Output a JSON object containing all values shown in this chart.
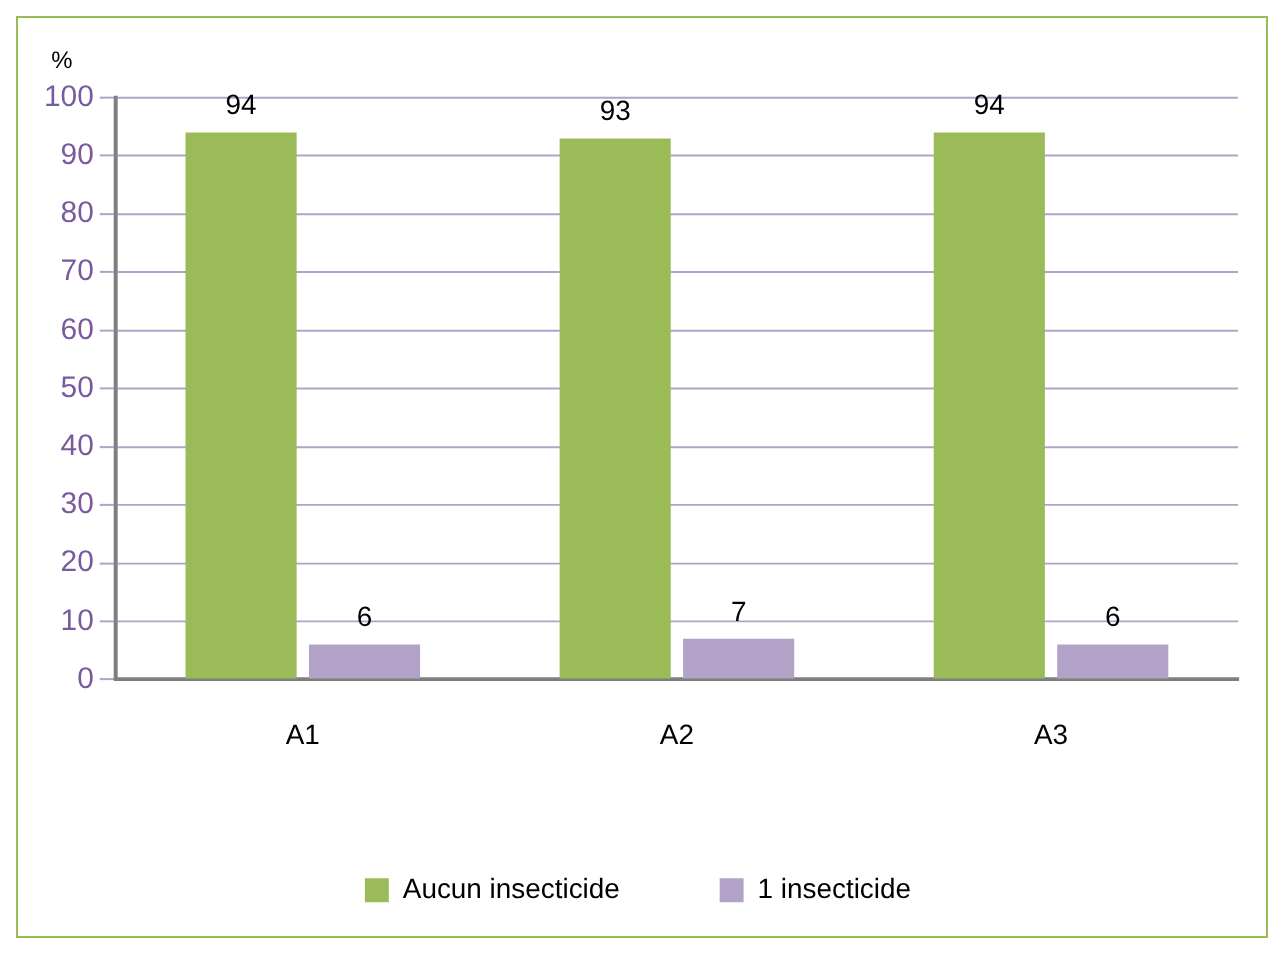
{
  "chart_data": {
    "type": "bar",
    "ylabel": "%",
    "categories": [
      "A1",
      "A2",
      "A3"
    ],
    "series": [
      {
        "name": "Aucun insecticide",
        "color": "#9bbb59",
        "values": [
          94,
          93,
          94
        ]
      },
      {
        "name": "1 insecticide",
        "color": "#b3a2c7",
        "values": [
          6,
          7,
          6
        ]
      }
    ],
    "ylim": [
      0,
      100
    ],
    "yticks": [
      0,
      10,
      20,
      30,
      40,
      50,
      60,
      70,
      80,
      90,
      100
    ],
    "grid": "y",
    "legend": "bottom",
    "data_labels": true
  }
}
